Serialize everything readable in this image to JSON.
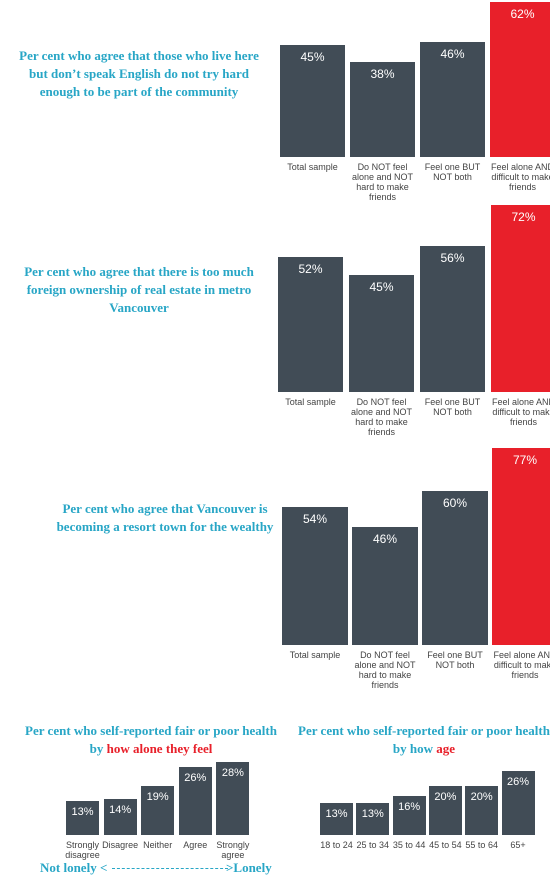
{
  "chart_data": [
    {
      "type": "bar",
      "title": "Per cent who agree that those who live here but don’t speak English do not try hard enough to be part of the community",
      "categories": [
        "Total sample",
        "Do NOT feel alone and NOT hard to make friends",
        "Feel one BUT NOT both",
        "Feel alone AND difficult to make friends"
      ],
      "values": [
        45,
        38,
        46,
        62
      ],
      "value_labels": [
        "45%",
        "38%",
        "46%",
        "62%"
      ],
      "colors": [
        "#414c56",
        "#414c56",
        "#414c56",
        "#e8202a"
      ]
    },
    {
      "type": "bar",
      "title": "Per cent who agree that there is too much foreign ownership of real estate in metro Vancouver",
      "categories": [
        "Total sample",
        "Do NOT feel alone and NOT hard to make friends",
        "Feel one BUT NOT both",
        "Feel alone AND difficult to make friends"
      ],
      "values": [
        52,
        45,
        56,
        72
      ],
      "value_labels": [
        "52%",
        "45%",
        "56%",
        "72%"
      ],
      "colors": [
        "#414c56",
        "#414c56",
        "#414c56",
        "#e8202a"
      ]
    },
    {
      "type": "bar",
      "title": "Per cent who agree that Vancouver is becoming a resort town for the wealthy",
      "categories": [
        "Total sample",
        "Do NOT feel alone and NOT hard to make friends",
        "Feel one BUT NOT both",
        "Feel alone AND difficult to make friends"
      ],
      "values": [
        54,
        46,
        60,
        77
      ],
      "value_labels": [
        "54%",
        "46%",
        "60%",
        "77%"
      ],
      "colors": [
        "#414c56",
        "#414c56",
        "#414c56",
        "#e8202a"
      ]
    },
    {
      "type": "bar",
      "title": "Per cent who self-reported fair or poor health by",
      "title_highlight": "how alone they feel",
      "highlight_color": "#e8202a",
      "categories": [
        "Strongly disagree",
        "Disagree",
        "Neither",
        "Agree",
        "Strongly agree"
      ],
      "values": [
        13,
        14,
        19,
        26,
        28
      ],
      "value_labels": [
        "13%",
        "14%",
        "19%",
        "26%",
        "28%"
      ],
      "colors": [
        "#414c56",
        "#414c56",
        "#414c56",
        "#414c56",
        "#414c56"
      ],
      "annotations": [
        "Not lonely <",
        ">Lonely"
      ]
    },
    {
      "type": "bar",
      "title": "Per cent who self-reported fair or poor health by how",
      "title_highlight": "age",
      "highlight_color": "#e8202a",
      "categories": [
        "18 to 24",
        "25 to 34",
        "35 to 44",
        "45 to 54",
        "55 to 64",
        "65+"
      ],
      "values": [
        13,
        13,
        16,
        20,
        20,
        26
      ],
      "value_labels": [
        "13%",
        "13%",
        "16%",
        "20%",
        "20%",
        "26%"
      ],
      "colors": [
        "#414c56",
        "#414c56",
        "#414c56",
        "#414c56",
        "#414c56",
        "#414c56"
      ]
    }
  ]
}
